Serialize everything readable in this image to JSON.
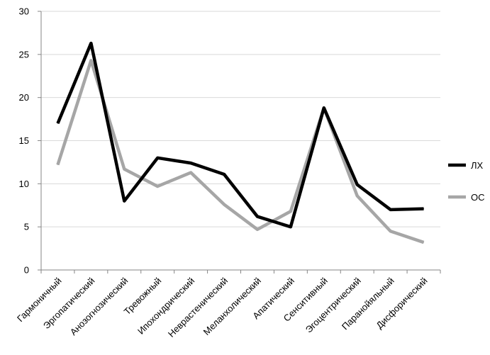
{
  "chart_data": {
    "type": "line",
    "title": "",
    "xlabel": "",
    "ylabel": "",
    "ylim": [
      0,
      30
    ],
    "yticks": [
      0,
      5,
      10,
      15,
      20,
      25,
      30
    ],
    "grid": "horizontal",
    "legend_position": "right",
    "categories": [
      "Гармоничный",
      "Эргопатический",
      "Анозогнозический",
      "Тревожный",
      "Ипохондрический",
      "Неврастенический",
      "Меланхолический",
      "Апатический",
      "Сенситивный",
      "Эгоцентрический",
      "Паранойяльный",
      "Дисфорический"
    ],
    "series": [
      {
        "name": "ЛХ",
        "color": "#000000",
        "values": [
          17.0,
          26.3,
          8.0,
          13.0,
          12.4,
          11.1,
          6.2,
          5.0,
          18.8,
          9.9,
          7.0,
          7.1
        ]
      },
      {
        "name": "ОС",
        "color": "#a6a6a6",
        "values": [
          12.2,
          24.3,
          11.7,
          9.7,
          11.3,
          7.6,
          4.7,
          6.8,
          18.8,
          8.6,
          4.5,
          3.2
        ]
      }
    ]
  }
}
